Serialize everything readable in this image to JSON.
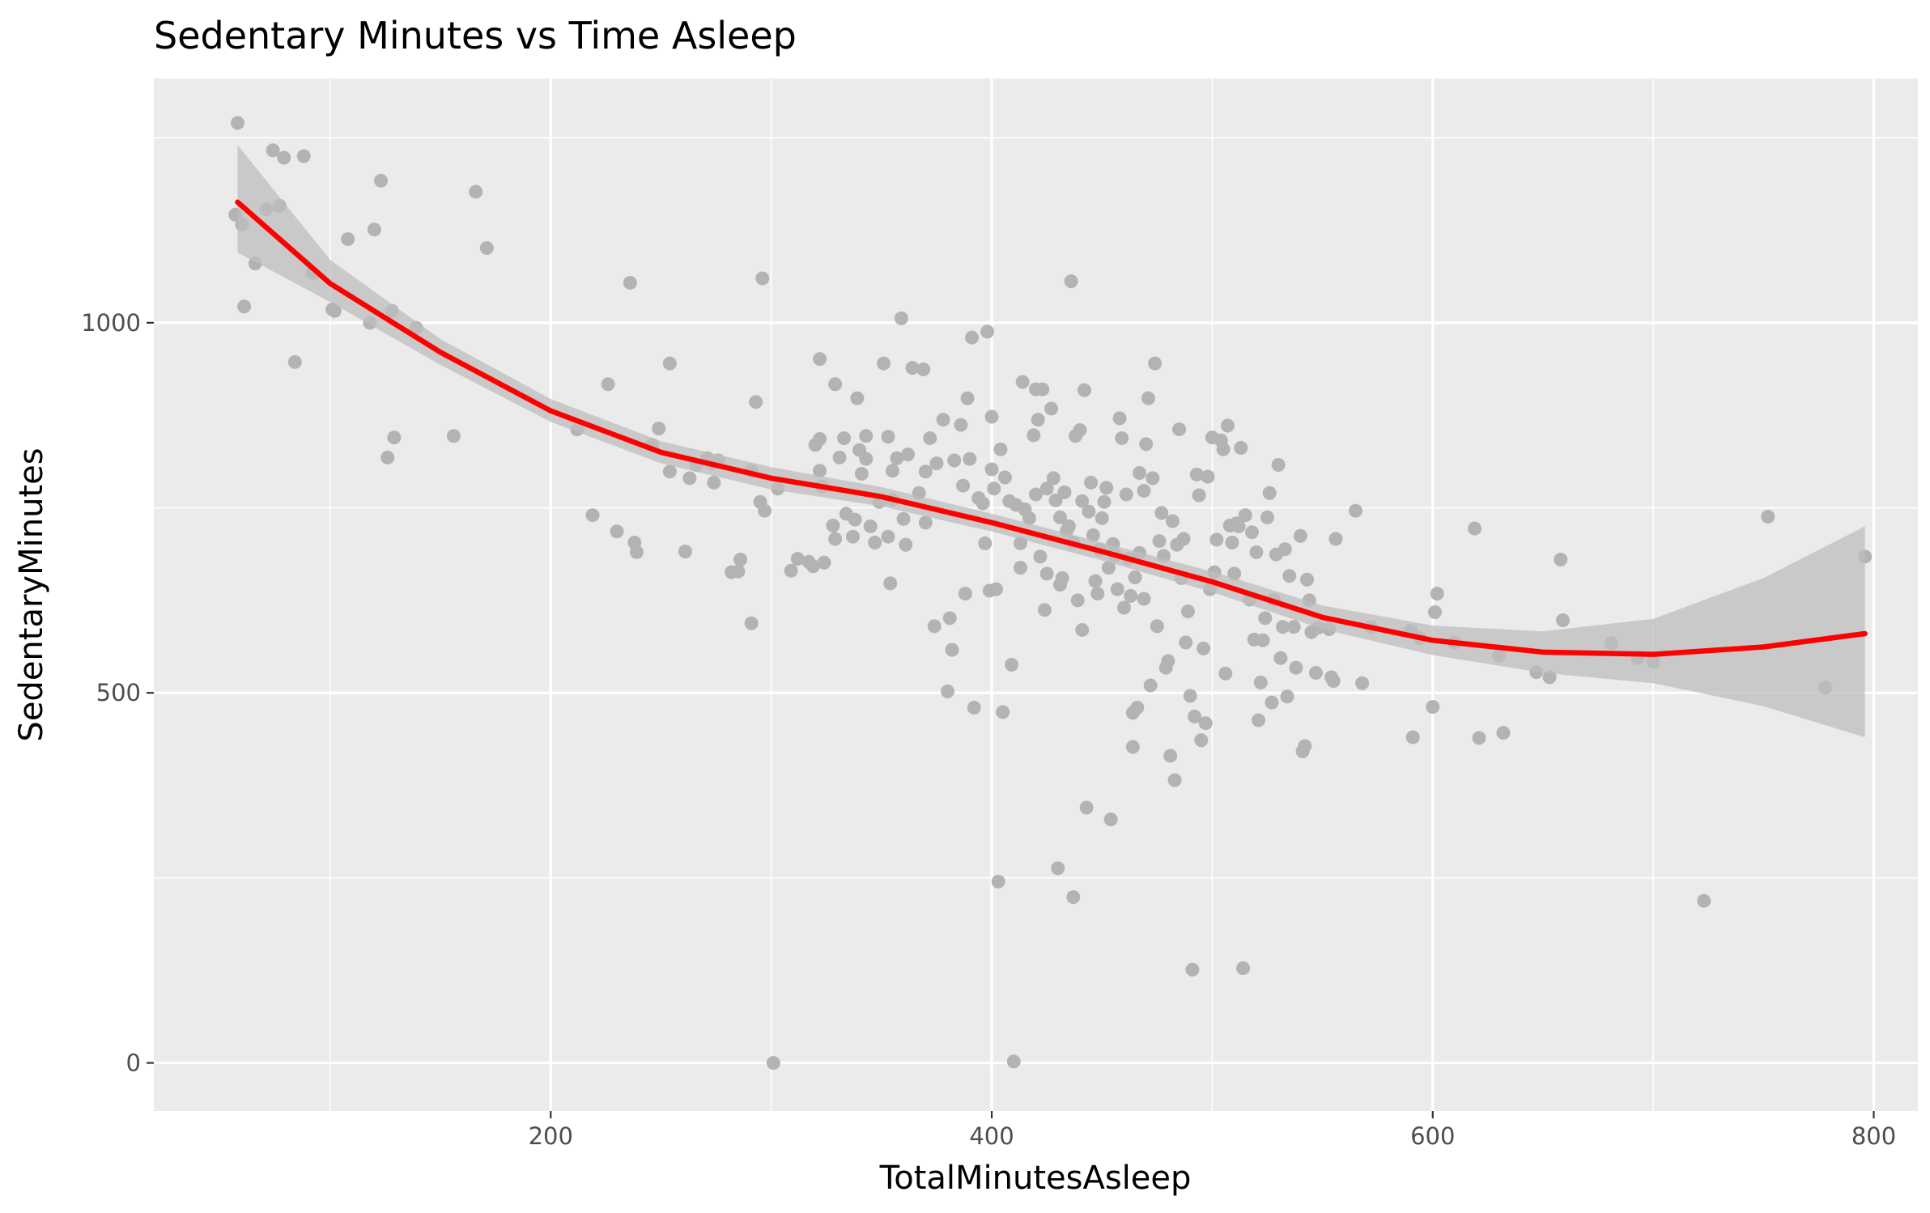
{
  "chart_data": {
    "type": "scatter",
    "title": "Sedentary Minutes vs Time Asleep",
    "xlabel": "TotalMinutesAsleep",
    "ylabel": "SedentaryMinutes",
    "xlim": [
      20,
      820
    ],
    "ylim": [
      -65,
      1330
    ],
    "x_ticks": [
      200,
      400,
      600,
      800
    ],
    "y_ticks": [
      0,
      500,
      1000
    ],
    "grid": true,
    "legend": "none",
    "point_color": "#b3b3b3",
    "line_color": "#ff0000",
    "band_color": "#bdbdbd",
    "panel_color": "#ebebeb",
    "smooth": {
      "x": [
        58,
        100,
        150,
        200,
        250,
        300,
        350,
        400,
        450,
        500,
        550,
        600,
        650,
        700,
        750,
        796
      ],
      "y": [
        1163,
        1053,
        960,
        881,
        825,
        790,
        765,
        730,
        691,
        650,
        602,
        571,
        555,
        552,
        562,
        580
      ],
      "lower": [
        1095,
        1028,
        943,
        866,
        810,
        775,
        752,
        718,
        679,
        636,
        586,
        551,
        527,
        513,
        482,
        440
      ],
      "upper": [
        1240,
        1085,
        978,
        897,
        840,
        805,
        778,
        742,
        703,
        664,
        618,
        591,
        583,
        600,
        655,
        725
      ]
    },
    "points": [
      [
        58,
        1270
      ],
      [
        57,
        1146
      ],
      [
        60,
        1133
      ],
      [
        61,
        1022
      ],
      [
        66,
        1080
      ],
      [
        71,
        1153
      ],
      [
        74,
        1233
      ],
      [
        77,
        1158
      ],
      [
        79,
        1223
      ],
      [
        88,
        1225
      ],
      [
        92,
        1067
      ],
      [
        102,
        1016
      ],
      [
        108,
        1113
      ],
      [
        120,
        1126
      ],
      [
        123,
        1192
      ],
      [
        128,
        1016
      ],
      [
        126,
        818
      ],
      [
        129,
        845
      ],
      [
        156,
        847
      ],
      [
        166,
        1177
      ],
      [
        171,
        1101
      ],
      [
        84,
        947
      ],
      [
        139,
        993
      ],
      [
        101,
        1018
      ],
      [
        118,
        1000
      ],
      [
        212,
        856
      ],
      [
        219,
        740
      ],
      [
        226,
        917
      ],
      [
        230,
        718
      ],
      [
        236,
        1054
      ],
      [
        238,
        703
      ],
      [
        239,
        690
      ],
      [
        246,
        835
      ],
      [
        249,
        857
      ],
      [
        254,
        799
      ],
      [
        254,
        945
      ],
      [
        261,
        691
      ],
      [
        263,
        790
      ],
      [
        266,
        808
      ],
      [
        271,
        817
      ],
      [
        273,
        810
      ],
      [
        274,
        784
      ],
      [
        276,
        814
      ],
      [
        282,
        663
      ],
      [
        285,
        664
      ],
      [
        286,
        680
      ],
      [
        291,
        800
      ],
      [
        291,
        594
      ],
      [
        293,
        893
      ],
      [
        295,
        758
      ],
      [
        296,
        1060
      ],
      [
        297,
        746
      ],
      [
        301,
        0
      ],
      [
        303,
        776
      ],
      [
        309,
        665
      ],
      [
        312,
        681
      ],
      [
        317,
        677
      ],
      [
        319,
        671
      ],
      [
        320,
        835
      ],
      [
        322,
        951
      ],
      [
        322,
        843
      ],
      [
        322,
        800
      ],
      [
        323,
        779
      ],
      [
        324,
        676
      ],
      [
        328,
        726
      ],
      [
        329,
        708
      ],
      [
        329,
        917
      ],
      [
        331,
        818
      ],
      [
        333,
        844
      ],
      [
        334,
        742
      ],
      [
        337,
        711
      ],
      [
        338,
        734
      ],
      [
        339,
        898
      ],
      [
        340,
        828
      ],
      [
        341,
        796
      ],
      [
        343,
        847
      ],
      [
        343,
        816
      ],
      [
        345,
        725
      ],
      [
        347,
        703
      ],
      [
        349,
        758
      ],
      [
        351,
        945
      ],
      [
        353,
        846
      ],
      [
        353,
        711
      ],
      [
        354,
        648
      ],
      [
        355,
        761
      ],
      [
        355,
        800
      ],
      [
        357,
        817
      ],
      [
        359,
        1006
      ],
      [
        360,
        735
      ],
      [
        361,
        700
      ],
      [
        362,
        822
      ],
      [
        364,
        939
      ],
      [
        367,
        770
      ],
      [
        369,
        937
      ],
      [
        370,
        799
      ],
      [
        370,
        730
      ],
      [
        372,
        844
      ],
      [
        374,
        590
      ],
      [
        375,
        810
      ],
      [
        378,
        869
      ],
      [
        380,
        502
      ],
      [
        381,
        601
      ],
      [
        382,
        558
      ],
      [
        383,
        814
      ],
      [
        386,
        862
      ],
      [
        387,
        780
      ],
      [
        388,
        634
      ],
      [
        389,
        898
      ],
      [
        390,
        816
      ],
      [
        391,
        980
      ],
      [
        392,
        480
      ],
      [
        394,
        763
      ],
      [
        396,
        756
      ],
      [
        397,
        702
      ],
      [
        398,
        988
      ],
      [
        399,
        638
      ],
      [
        400,
        802
      ],
      [
        400,
        873
      ],
      [
        401,
        776
      ],
      [
        402,
        640
      ],
      [
        403,
        245
      ],
      [
        404,
        829
      ],
      [
        405,
        474
      ],
      [
        406,
        791
      ],
      [
        408,
        759
      ],
      [
        409,
        538
      ],
      [
        410,
        2
      ],
      [
        411,
        754
      ],
      [
        413,
        669
      ],
      [
        413,
        702
      ],
      [
        414,
        920
      ],
      [
        415,
        748
      ],
      [
        417,
        736
      ],
      [
        419,
        848
      ],
      [
        420,
        910
      ],
      [
        420,
        768
      ],
      [
        421,
        869
      ],
      [
        422,
        684
      ],
      [
        423,
        910
      ],
      [
        424,
        612
      ],
      [
        425,
        661
      ],
      [
        425,
        776
      ],
      [
        427,
        884
      ],
      [
        428,
        790
      ],
      [
        429,
        760
      ],
      [
        430,
        263
      ],
      [
        431,
        737
      ],
      [
        431,
        646
      ],
      [
        432,
        655
      ],
      [
        433,
        771
      ],
      [
        434,
        719
      ],
      [
        435,
        725
      ],
      [
        436,
        1056
      ],
      [
        437,
        224
      ],
      [
        437,
        703
      ],
      [
        438,
        847
      ],
      [
        439,
        625
      ],
      [
        440,
        855
      ],
      [
        441,
        759
      ],
      [
        441,
        585
      ],
      [
        442,
        909
      ],
      [
        443,
        345
      ],
      [
        444,
        745
      ],
      [
        445,
        784
      ],
      [
        446,
        713
      ],
      [
        447,
        651
      ],
      [
        448,
        634
      ],
      [
        449,
        693
      ],
      [
        450,
        736
      ],
      [
        451,
        758
      ],
      [
        452,
        777
      ],
      [
        453,
        669
      ],
      [
        454,
        329
      ],
      [
        455,
        701
      ],
      [
        456,
        686
      ],
      [
        457,
        640
      ],
      [
        458,
        871
      ],
      [
        459,
        844
      ],
      [
        460,
        615
      ],
      [
        461,
        768
      ],
      [
        462,
        681
      ],
      [
        463,
        631
      ],
      [
        464,
        473
      ],
      [
        464,
        427
      ],
      [
        465,
        656
      ],
      [
        466,
        480
      ],
      [
        467,
        689
      ],
      [
        467,
        797
      ],
      [
        469,
        773
      ],
      [
        469,
        627
      ],
      [
        470,
        836
      ],
      [
        471,
        898
      ],
      [
        472,
        510
      ],
      [
        473,
        790
      ],
      [
        474,
        945
      ],
      [
        475,
        590
      ],
      [
        476,
        705
      ],
      [
        477,
        743
      ],
      [
        478,
        685
      ],
      [
        479,
        534
      ],
      [
        480,
        543
      ],
      [
        481,
        415
      ],
      [
        482,
        732
      ],
      [
        483,
        382
      ],
      [
        484,
        700
      ],
      [
        485,
        856
      ],
      [
        486,
        655
      ],
      [
        487,
        708
      ],
      [
        488,
        568
      ],
      [
        489,
        610
      ],
      [
        490,
        496
      ],
      [
        491,
        126
      ],
      [
        492,
        468
      ],
      [
        493,
        795
      ],
      [
        494,
        767
      ],
      [
        495,
        436
      ],
      [
        496,
        560
      ],
      [
        497,
        459
      ],
      [
        498,
        792
      ],
      [
        499,
        640
      ],
      [
        500,
        845
      ],
      [
        501,
        663
      ],
      [
        502,
        707
      ],
      [
        504,
        841
      ],
      [
        505,
        829
      ],
      [
        506,
        526
      ],
      [
        507,
        861
      ],
      [
        508,
        726
      ],
      [
        509,
        703
      ],
      [
        510,
        661
      ],
      [
        511,
        729
      ],
      [
        512,
        725
      ],
      [
        513,
        831
      ],
      [
        514,
        128
      ],
      [
        515,
        740
      ],
      [
        517,
        626
      ],
      [
        518,
        717
      ],
      [
        519,
        572
      ],
      [
        520,
        690
      ],
      [
        521,
        463
      ],
      [
        522,
        514
      ],
      [
        523,
        571
      ],
      [
        524,
        601
      ],
      [
        525,
        737
      ],
      [
        526,
        770
      ],
      [
        527,
        487
      ],
      [
        528,
        626
      ],
      [
        529,
        687
      ],
      [
        530,
        808
      ],
      [
        531,
        547
      ],
      [
        532,
        589
      ],
      [
        533,
        694
      ],
      [
        534,
        495
      ],
      [
        535,
        658
      ],
      [
        537,
        589
      ],
      [
        538,
        534
      ],
      [
        540,
        712
      ],
      [
        541,
        421
      ],
      [
        542,
        428
      ],
      [
        543,
        653
      ],
      [
        544,
        625
      ],
      [
        545,
        582
      ],
      [
        547,
        527
      ],
      [
        548,
        588
      ],
      [
        553,
        586
      ],
      [
        554,
        521
      ],
      [
        555,
        516
      ],
      [
        556,
        708
      ],
      [
        565,
        746
      ],
      [
        568,
        513
      ],
      [
        572,
        589
      ],
      [
        590,
        584
      ],
      [
        591,
        440
      ],
      [
        594,
        574
      ],
      [
        600,
        481
      ],
      [
        601,
        609
      ],
      [
        602,
        634
      ],
      [
        610,
        568
      ],
      [
        619,
        722
      ],
      [
        621,
        439
      ],
      [
        630,
        550
      ],
      [
        632,
        446
      ],
      [
        647,
        528
      ],
      [
        653,
        521
      ],
      [
        658,
        680
      ],
      [
        659,
        598
      ],
      [
        681,
        567
      ],
      [
        693,
        547
      ],
      [
        700,
        542
      ],
      [
        723,
        219
      ],
      [
        752,
        738
      ],
      [
        778,
        507
      ],
      [
        796,
        684
      ]
    ]
  }
}
